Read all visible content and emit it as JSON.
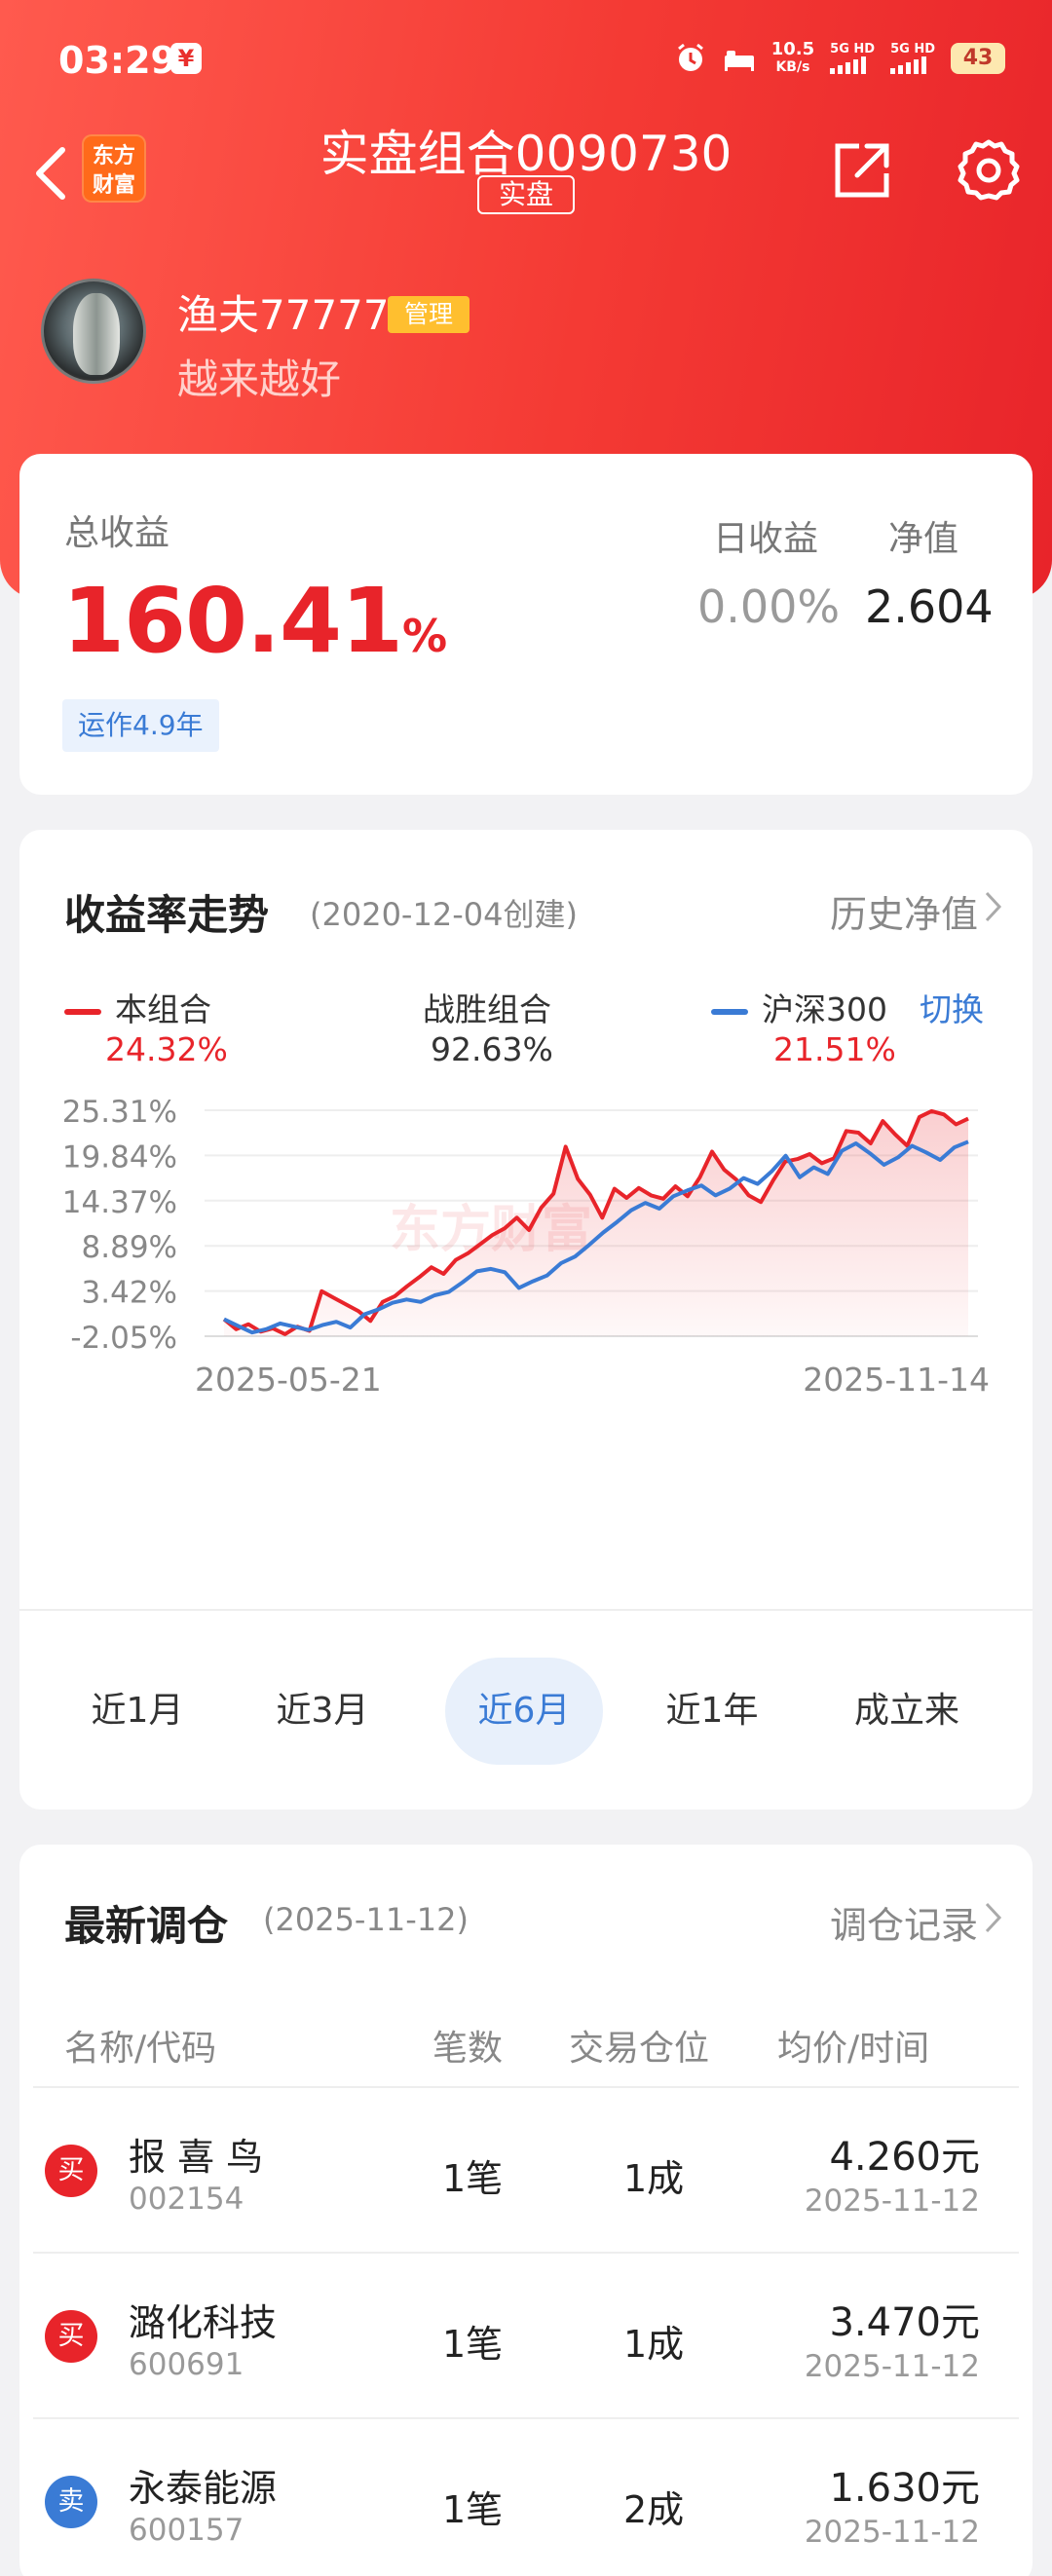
{
  "status_bar": {
    "time": "03:29",
    "app_badge": "¥",
    "speed_value": "10.5",
    "speed_unit": "KB/s",
    "net1": "5G HD",
    "net2": "5G HD",
    "battery": "43"
  },
  "header": {
    "logo_line1": "东方",
    "logo_line2": "财富",
    "title": "实盘组合0090730",
    "tag": "实盘"
  },
  "user": {
    "name": "渔夫77777",
    "role_badge": "管理",
    "motto": "越来越好"
  },
  "summary": {
    "total_label": "总收益",
    "total_value": "160.41",
    "total_unit": "%",
    "run_time": "运作4.9年",
    "day_label": "日收益",
    "day_value": "0.00%",
    "nav_label": "净值",
    "nav_value": "2.604"
  },
  "trend": {
    "title": "收益率走势",
    "created": "(2020-12-04创建)",
    "history_link": "历史净值",
    "legend": {
      "portfolio_label": "本组合",
      "portfolio_value": "24.32%",
      "beat_label": "战胜组合",
      "beat_value": "92.63%",
      "index_label": "沪深300",
      "index_value": "21.51%",
      "switch_label": "切换"
    },
    "watermark": "东方财富",
    "ranges": [
      "近1月",
      "近3月",
      "近6月",
      "近1年",
      "成立来"
    ],
    "active_range": "近6月"
  },
  "chart_data": {
    "type": "line",
    "y_ticks": [
      "25.31%",
      "19.84%",
      "14.37%",
      "8.89%",
      "3.42%",
      "-2.05%"
    ],
    "ylim": [
      -2.05,
      25.31
    ],
    "x_start_label": "2025-05-21",
    "x_end_label": "2025-11-14",
    "colors": {
      "portfolio": "#e8242a",
      "index": "#3a7bd5"
    },
    "series": [
      {
        "name": "本组合",
        "values": [
          0.0,
          -1.2,
          -0.6,
          -1.5,
          -1.1,
          -1.8,
          -0.9,
          -1.4,
          3.4,
          2.6,
          1.8,
          1.0,
          -0.2,
          2.1,
          2.8,
          4.0,
          5.1,
          6.3,
          5.5,
          7.2,
          8.0,
          9.1,
          10.2,
          11.0,
          12.3,
          10.8,
          13.5,
          15.2,
          20.9,
          17.0,
          15.1,
          12.3,
          15.8,
          14.7,
          15.9,
          15.0,
          14.6,
          16.1,
          14.9,
          17.2,
          20.3,
          18.1,
          16.9,
          15.0,
          14.2,
          16.8,
          19.1,
          19.4,
          20.0,
          18.9,
          19.5,
          22.8,
          22.6,
          21.3,
          24.0,
          22.4,
          21.0,
          24.5,
          25.2,
          24.8,
          23.6,
          24.3
        ]
      },
      {
        "name": "沪深300",
        "values": [
          0.0,
          -0.8,
          -1.6,
          -1.2,
          -0.5,
          -0.9,
          -1.3,
          -0.7,
          -0.3,
          -1.0,
          0.6,
          1.2,
          2.0,
          2.4,
          2.1,
          2.9,
          3.3,
          4.5,
          5.8,
          6.1,
          5.7,
          3.8,
          4.6,
          5.3,
          6.8,
          7.6,
          9.0,
          10.5,
          11.8,
          13.2,
          14.1,
          13.4,
          14.9,
          15.6,
          16.2,
          15.0,
          15.8,
          17.1,
          16.4,
          17.9,
          19.8,
          17.2,
          18.4,
          17.6,
          20.4,
          21.3,
          20.1,
          18.7,
          19.6,
          21.0,
          20.2,
          19.3,
          20.8,
          21.5
        ]
      }
    ]
  },
  "rebalance": {
    "title": "最新调仓",
    "date": "(2025-11-12)",
    "records_link": "调仓记录",
    "columns": [
      "名称/代码",
      "笔数",
      "交易仓位",
      "均价/时间"
    ],
    "rows": [
      {
        "action": "买",
        "type": "buy",
        "name": "报 喜 鸟",
        "code": "002154",
        "count": "1笔",
        "position": "1成",
        "price": "4.260元",
        "time": "2025-11-12"
      },
      {
        "action": "买",
        "type": "buy",
        "name": "潞化科技",
        "code": "600691",
        "count": "1笔",
        "position": "1成",
        "price": "3.470元",
        "time": "2025-11-12"
      },
      {
        "action": "卖",
        "type": "sell",
        "name": "永泰能源",
        "code": "600157",
        "count": "1笔",
        "position": "2成",
        "price": "1.630元",
        "time": "2025-11-12"
      }
    ]
  }
}
